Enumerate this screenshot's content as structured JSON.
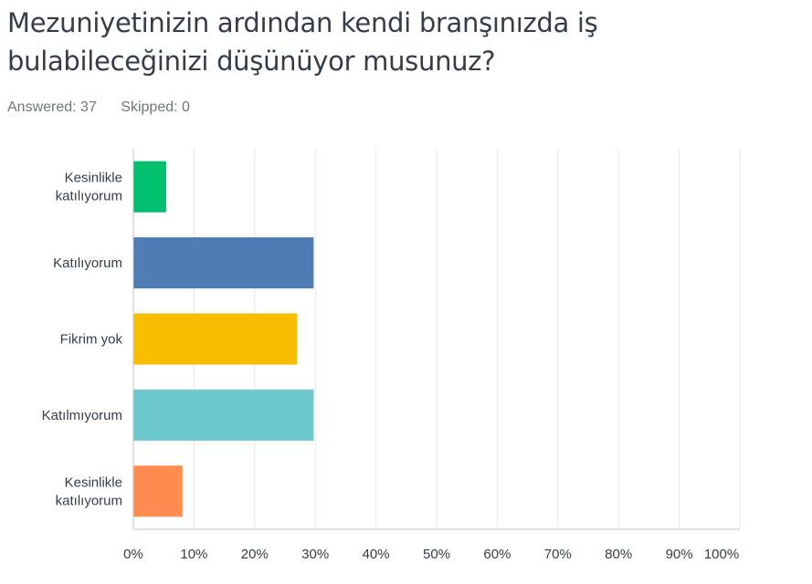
{
  "question": {
    "title": "Mezuniyetinizin ardından kendi branşınızda iş bulabileceğinizi düşünüyor musunuz?"
  },
  "stats": {
    "answered": "Answered: 37",
    "skipped": "Skipped: 0"
  },
  "chart_data": {
    "type": "bar",
    "orientation": "horizontal",
    "title": "",
    "xlabel": "",
    "ylabel": "",
    "categories": [
      [
        "Kesinlikle",
        "katılıyorum"
      ],
      [
        "Katılıyorum"
      ],
      [
        "Fikrim yok"
      ],
      [
        "Katılmıyorum"
      ],
      [
        "Kesinlikle",
        "katılıyorum"
      ]
    ],
    "values": [
      5.41,
      29.73,
      27.03,
      29.73,
      8.11
    ],
    "units": "percent",
    "colors": [
      "#00bf6f",
      "#507cb6",
      "#f9be00",
      "#6bc8cd",
      "#ff8b4f"
    ],
    "xlim": [
      0,
      100
    ],
    "ticks": [
      "0%",
      "10%",
      "20%",
      "30%",
      "40%",
      "50%",
      "60%",
      "70%",
      "80%",
      "90%",
      "100%"
    ],
    "grid": true,
    "legend": "none"
  }
}
